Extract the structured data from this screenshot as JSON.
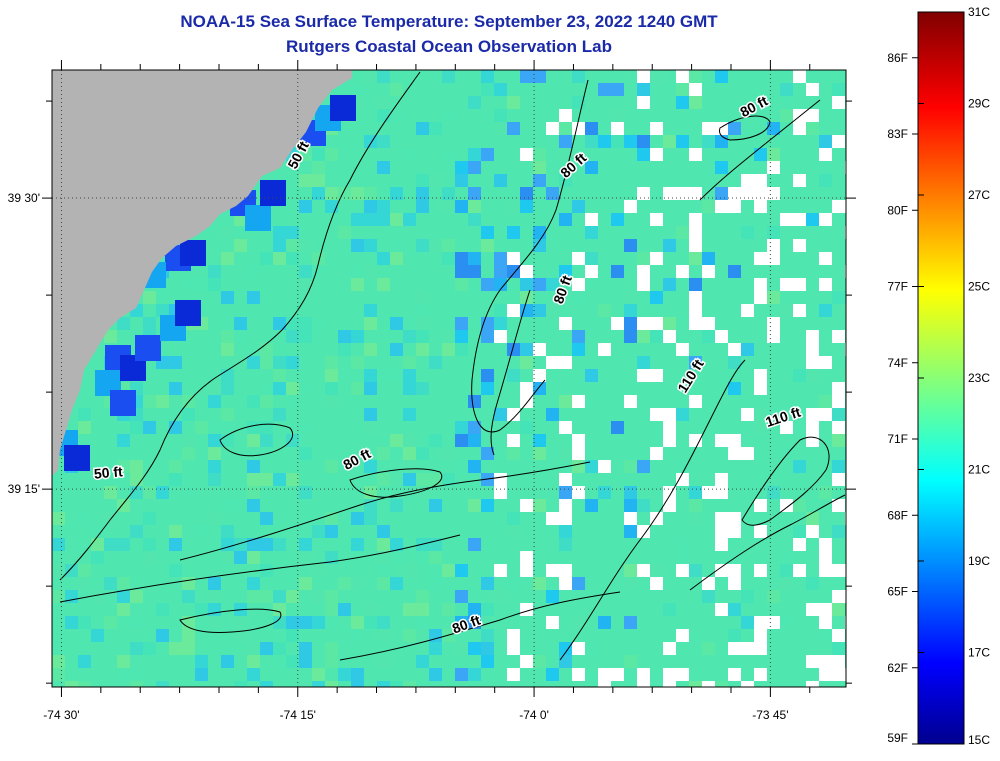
{
  "title": "NOAA-15 Sea Surface Temperature:  September 23, 2022 1240 GMT",
  "subtitle": "Rutgers Coastal Ocean Observation Lab",
  "map": {
    "lon_range": [
      -74.51,
      -73.67
    ],
    "lat_range": [
      39.08,
      39.61
    ],
    "lon_ticks": [
      {
        "value": -74.5,
        "label": "-74 30'"
      },
      {
        "value": -74.25,
        "label": "-74 15'"
      },
      {
        "value": -74.0,
        "label": "-74 0'"
      },
      {
        "value": -73.75,
        "label": "-73 45'"
      }
    ],
    "lat_ticks": [
      {
        "value": 39.25,
        "label": "39 15'"
      },
      {
        "value": 39.5,
        "label": "39 30'"
      }
    ],
    "contour_labels": [
      {
        "text": "50 ft",
        "lon": -74.245,
        "lat": 39.535,
        "rotate": -62
      },
      {
        "text": "50 ft",
        "lon": -74.45,
        "lat": 39.26,
        "rotate": -5
      },
      {
        "text": "80 ft",
        "lon": -73.955,
        "lat": 39.525,
        "rotate": -42
      },
      {
        "text": "80 ft",
        "lon": -73.965,
        "lat": 39.42,
        "rotate": -70
      },
      {
        "text": "80 ft",
        "lon": -74.185,
        "lat": 39.272,
        "rotate": -28
      },
      {
        "text": "80 ft",
        "lon": -74.07,
        "lat": 39.13,
        "rotate": -20
      },
      {
        "text": "80 ft",
        "lon": -73.765,
        "lat": 39.575,
        "rotate": -28
      },
      {
        "text": "110 ft",
        "lon": -73.83,
        "lat": 39.345,
        "rotate": -58
      },
      {
        "text": "110 ft",
        "lon": -73.735,
        "lat": 39.308,
        "rotate": -18
      }
    ],
    "colors": {
      "land": "#b3b3b3",
      "no_data": "#ffffff",
      "water_base": "#4fe6b0"
    }
  },
  "colorbar": {
    "celsius_labels": [
      "31C",
      "29C",
      "27C",
      "25C",
      "23C",
      "21C",
      "19C",
      "17C",
      "15C"
    ],
    "fahrenheit_labels": [
      "86F",
      "83F",
      "80F",
      "77F",
      "74F",
      "71F",
      "68F",
      "65F",
      "62F",
      "59F"
    ],
    "celsius_range": [
      15,
      31
    ],
    "colormap": "jet"
  }
}
